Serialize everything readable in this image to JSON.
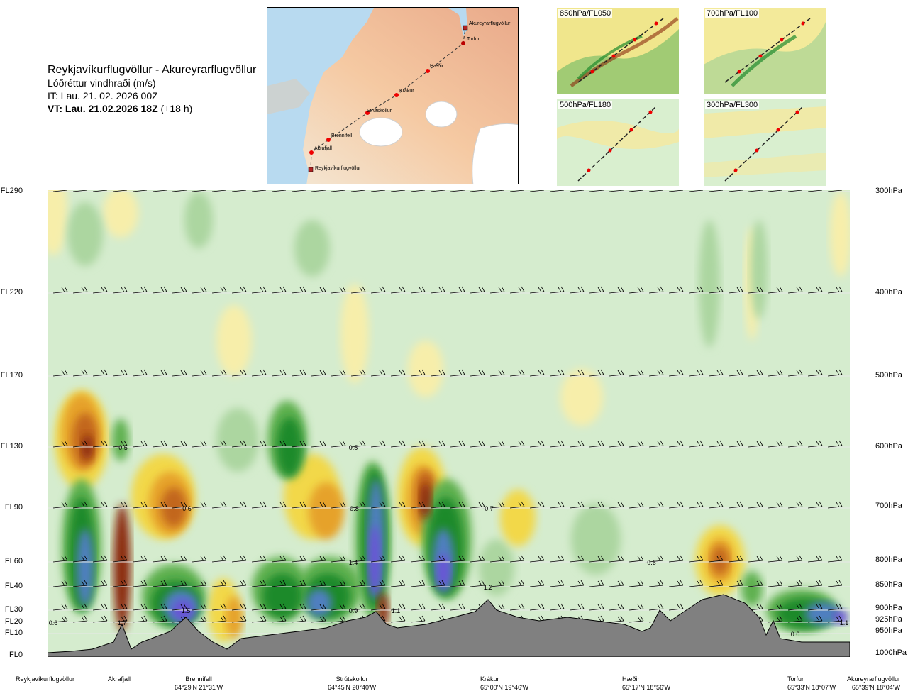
{
  "header": {
    "route": "Reykjavíkurflugvöllur - Akureyrarflugvöllur",
    "parameter": "Lóðréttur vindhraði (m/s)",
    "issue_time": "IT: Lau. 21. 02. 2026 00Z",
    "valid_time_bold": "VT: Lau. 21.02.2026 18Z",
    "valid_time_suffix": "(+18 h)"
  },
  "map": {
    "points": [
      "Reykjavíkurflugvöllur",
      "Akrafjall",
      "Brennifell",
      "Strútskollur",
      "Krákur",
      "Hæðir",
      "Torfur",
      "Akureyrarflugvöllur"
    ]
  },
  "thumbnails": [
    {
      "label": "850hPa/FL050"
    },
    {
      "label": "700hPa/FL100"
    },
    {
      "label": "500hPa/FL180"
    },
    {
      "label": "300hPa/FL300"
    }
  ],
  "left_levels": [
    "FL290",
    "FL220",
    "FL170",
    "FL130",
    "FL90",
    "FL60",
    "FL40",
    "FL30",
    "FL20",
    "FL10",
    "FL0"
  ],
  "right_levels": [
    "300hPa",
    "400hPa",
    "500hPa",
    "600hPa",
    "700hPa",
    "800hPa",
    "850hPa",
    "900hPa",
    "925hPa",
    "950hPa",
    "1000hPa"
  ],
  "stations": [
    {
      "name": "Reykjavíkurflugvöllur",
      "coord": ""
    },
    {
      "name": "Akrafjall",
      "coord": ""
    },
    {
      "name": "Brennifell",
      "coord": "64°29'N 21°31'W"
    },
    {
      "name": "Strútskollur",
      "coord": "64°45'N 20°40'W"
    },
    {
      "name": "Krákur",
      "coord": "65°00'N 19°46'W"
    },
    {
      "name": "Hæðir",
      "coord": "65°17'N 18°56'W"
    },
    {
      "name": "Torfur",
      "coord": "65°33'N 18°07'W"
    },
    {
      "name": "Akureyrarflugvöllur",
      "coord": "65°39'N 18°04'W"
    }
  ],
  "chart_data": {
    "type": "heatmap",
    "title": "Reykjavíkurflugvöllur - Akureyrarflugvöllur",
    "subtitle": "Lóðréttur vindhraði (m/s)",
    "x_points": [
      "Reykjavíkurflugvöllur",
      "Akrafjall",
      "Brennifell",
      "Strútskollur",
      "Krákur",
      "Hæðir",
      "Torfur",
      "Akureyrarflugvöllur"
    ],
    "y_levels_fl": [
      "FL0",
      "FL10",
      "FL20",
      "FL30",
      "FL40",
      "FL60",
      "FL90",
      "FL130",
      "FL170",
      "FL220",
      "FL290"
    ],
    "y_levels_hpa": [
      "1000hPa",
      "950hPa",
      "925hPa",
      "900hPa",
      "850hPa",
      "800hPa",
      "700hPa",
      "600hPa",
      "500hPa",
      "400hPa",
      "300hPa"
    ],
    "colors": {
      "strong_down": "#8b2a0e",
      "down_2": "#c2661a",
      "down_3": "#e6a22a",
      "down_4": "#f2d84a",
      "down_5": "#f7eeaa",
      "neutral": "#d5ecce",
      "up_1": "#acd6a0",
      "up_2": "#5fb04f",
      "up_3": "#1f8a2c",
      "up_4": "#4f7fc0",
      "strong_up": "#6b52d6",
      "terrain": "#808080"
    },
    "cells": [
      {
        "x": "Reykjavíkurflugvöllur",
        "level": "FL20",
        "value": 0.6
      },
      {
        "x": "Akrafjall",
        "level": "FL20",
        "value": 1.7
      },
      {
        "x": "Brennifell",
        "level": "FL30",
        "value": 1.5
      },
      {
        "x": "Akrafjall",
        "level": "FL130",
        "value": -0.5
      },
      {
        "x": "Brennifell",
        "level": "FL90",
        "value": -0.6
      },
      {
        "x": "Strútskollur",
        "level": "FL130",
        "value": 0.5
      },
      {
        "x": "Strútskollur",
        "level": "FL30",
        "value": 0.9
      },
      {
        "x": "Strútskollur",
        "level": "FL30",
        "value": 1.1
      },
      {
        "x": "Strútskollur",
        "level": "FL90",
        "value": -0.8
      },
      {
        "x": "Strútskollur",
        "level": "FL60",
        "value": 1.4
      },
      {
        "x": "Krákur",
        "level": "FL90",
        "value": -0.7
      },
      {
        "x": "Krákur",
        "level": "FL40",
        "value": 1.2
      },
      {
        "x": "Hæðir",
        "level": "FL60",
        "value": -0.6
      },
      {
        "x": "Torfur",
        "level": "FL10",
        "value": 0.6
      },
      {
        "x": "Akureyrarflugvöllur",
        "level": "FL20",
        "value": 1.1
      }
    ]
  }
}
